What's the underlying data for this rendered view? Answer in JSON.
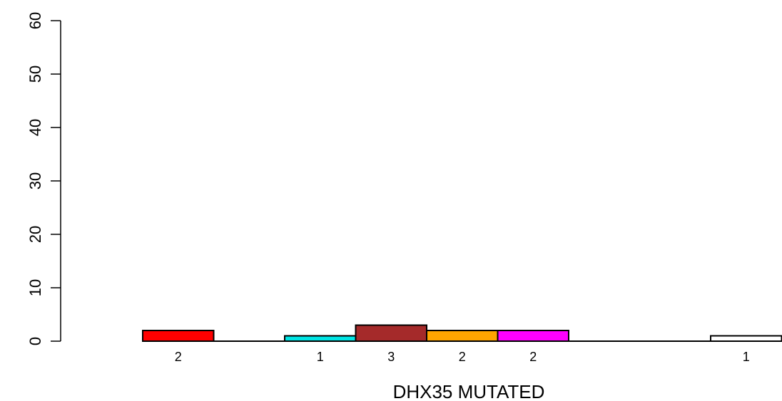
{
  "chart_data": {
    "type": "bar",
    "xlabel": "DHX35 MUTATED",
    "ylabel": "",
    "ylim": [
      0,
      60
    ],
    "yticks": [
      0,
      10,
      20,
      30,
      40,
      50,
      60
    ],
    "grid": false,
    "legend": "none",
    "bars": [
      {
        "slot": 1,
        "value": 2,
        "color": "#ff0000",
        "label": "2"
      },
      {
        "slot": 2,
        "value": 0,
        "color": "#000000",
        "label": ""
      },
      {
        "slot": 3,
        "value": 1,
        "color": "#00e5e5",
        "label": "1"
      },
      {
        "slot": 4,
        "value": 3,
        "color": "#a52a2a",
        "label": "3"
      },
      {
        "slot": 5,
        "value": 2,
        "color": "#ffa500",
        "label": "2"
      },
      {
        "slot": 6,
        "value": 2,
        "color": "#ff00ff",
        "label": "2"
      },
      {
        "slot": 7,
        "value": 0,
        "color": "#000000",
        "label": ""
      },
      {
        "slot": 8,
        "value": 0,
        "color": "#000000",
        "label": ""
      },
      {
        "slot": 9,
        "value": 1,
        "color": "#ffffff",
        "label": "1"
      }
    ]
  }
}
